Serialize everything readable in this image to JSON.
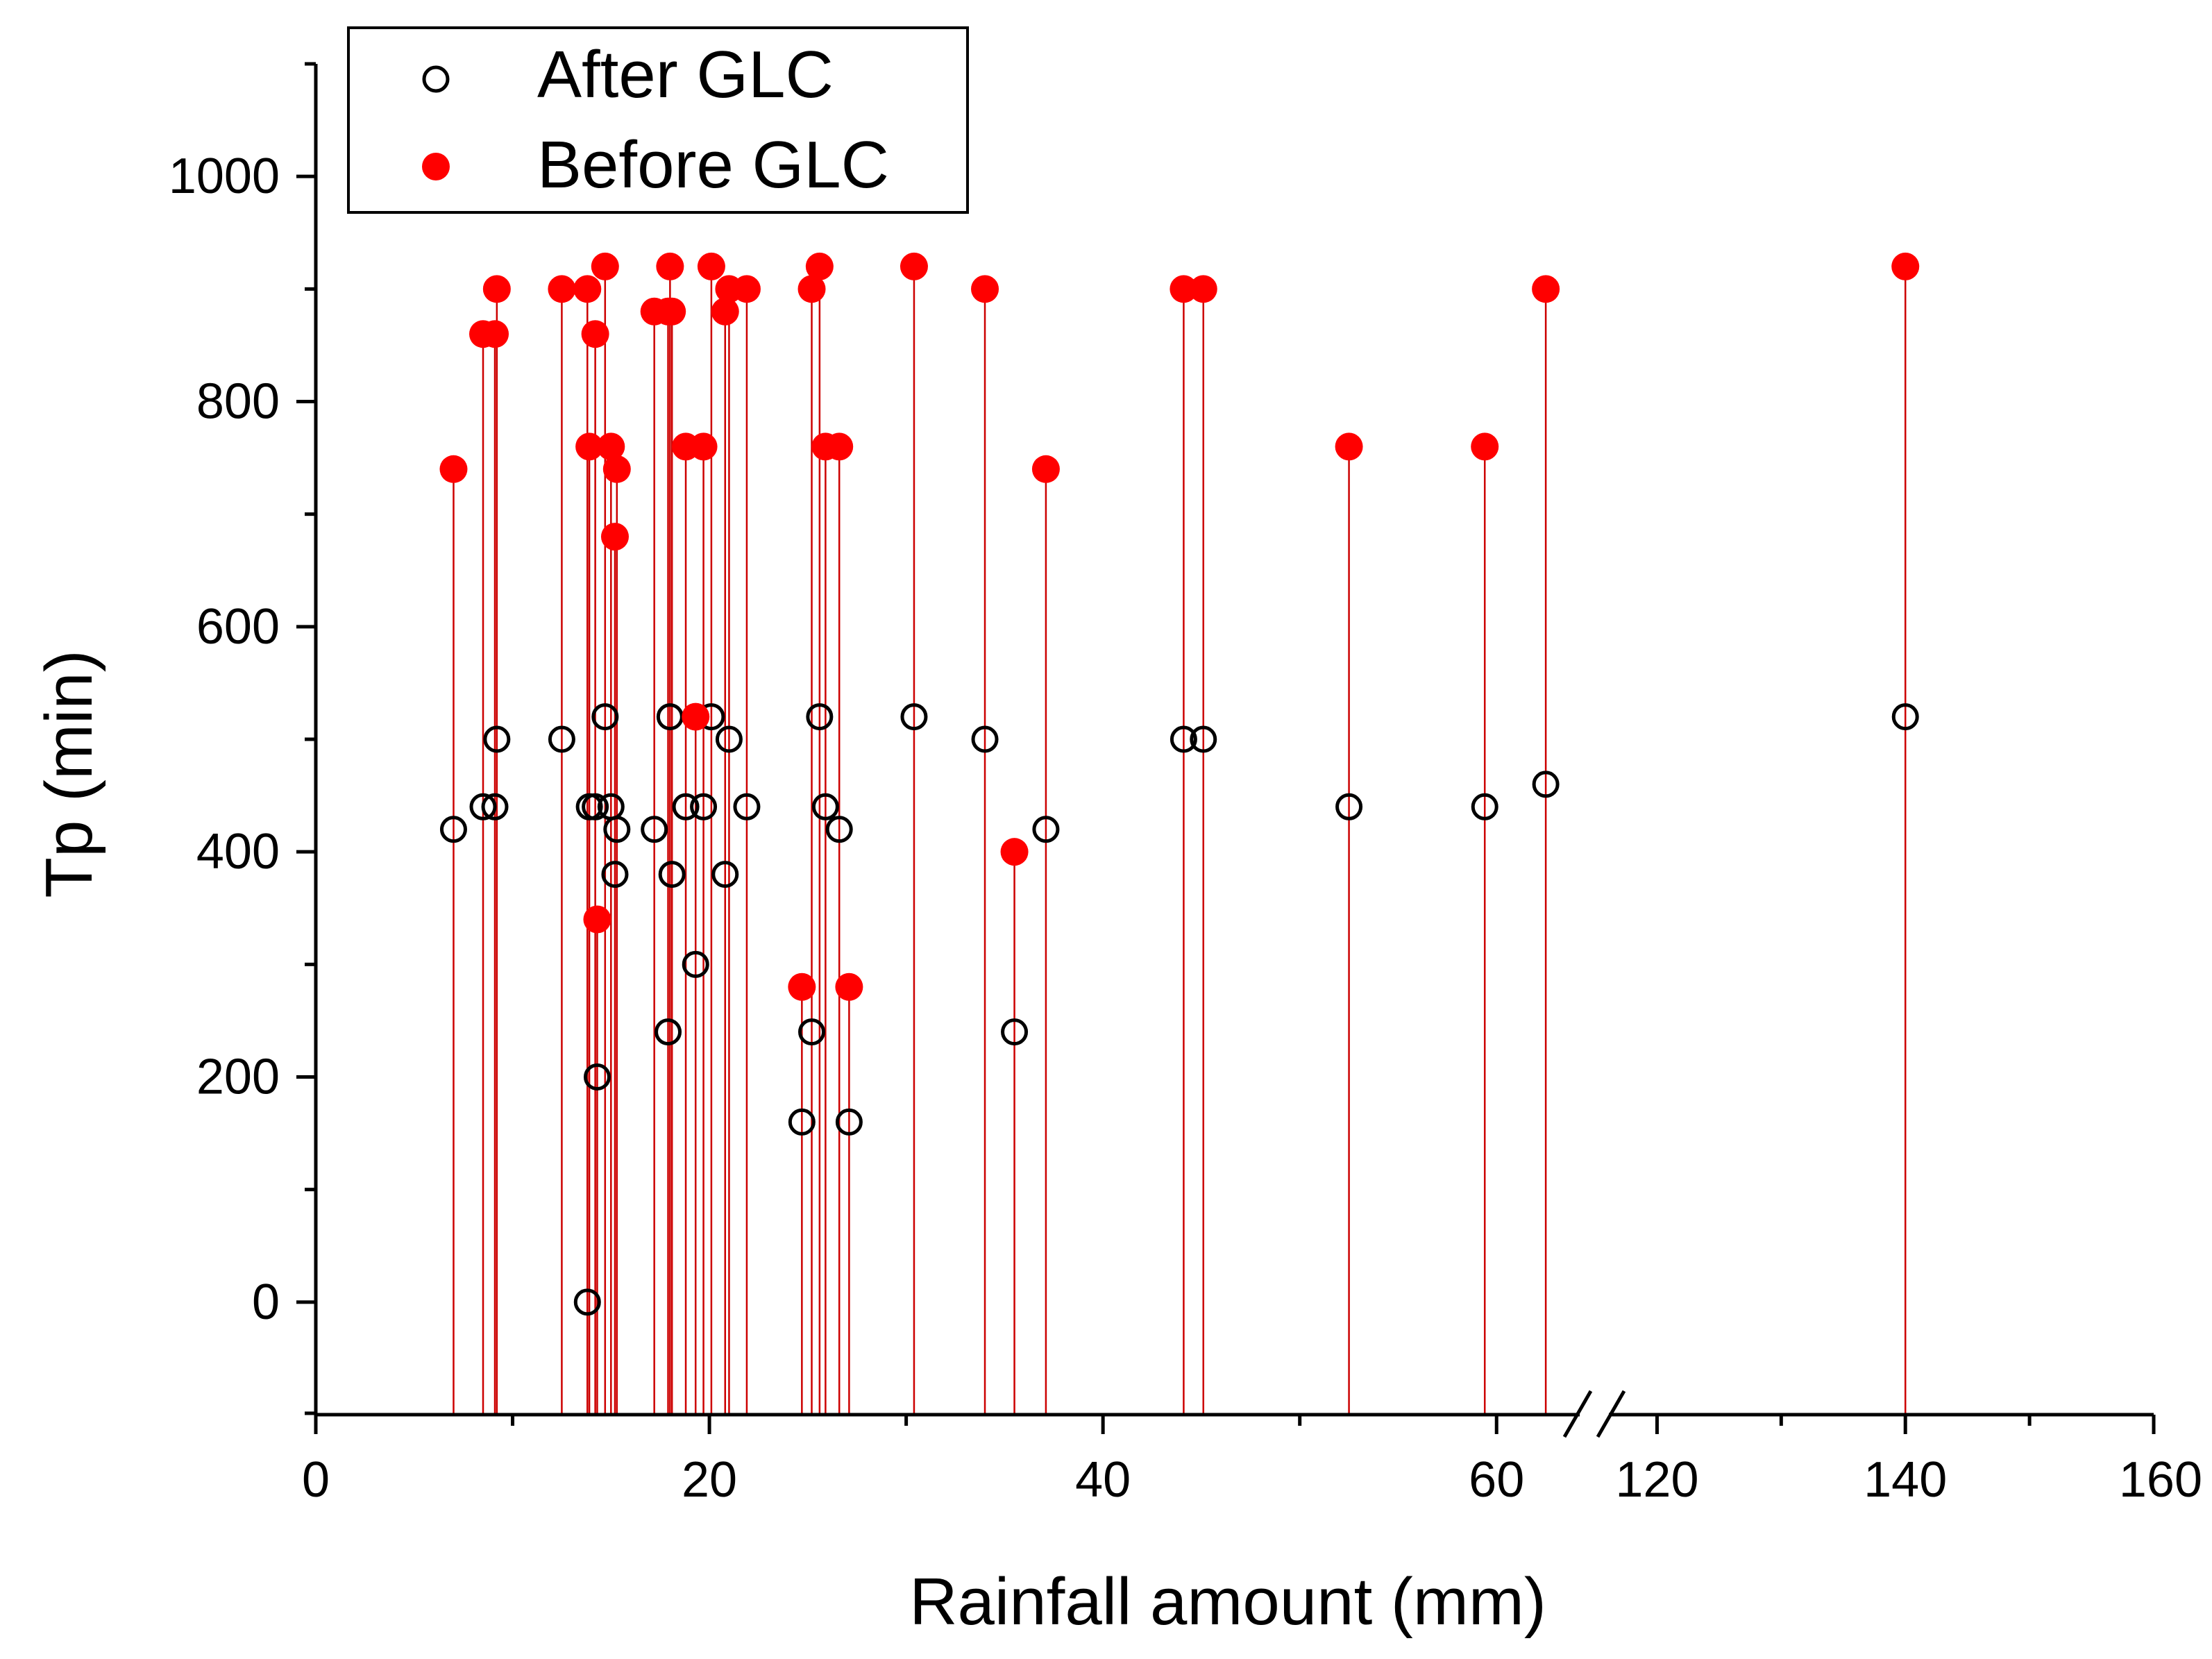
{
  "chart_data": {
    "type": "scatter",
    "title": "",
    "xlabel": "Rainfall amount (mm)",
    "ylabel": "Tp (min)",
    "ylim": [
      -100,
      1100
    ],
    "y_ticks": [
      0,
      200,
      400,
      600,
      800,
      1000
    ],
    "y_tick_labels": [
      "0",
      "200",
      "400",
      "600",
      "800",
      "1000"
    ],
    "x_broken_axis": true,
    "x_segment_1": {
      "range": [
        0,
        65
      ],
      "ticks": [
        0,
        20,
        40,
        60
      ],
      "tick_labels": [
        "0",
        "20",
        "40",
        "60"
      ]
    },
    "x_segment_2": {
      "range": [
        115,
        160
      ],
      "ticks": [
        120,
        140,
        160
      ],
      "tick_labels": [
        "120",
        "140",
        "160"
      ]
    },
    "grid": false,
    "legend": {
      "position": "top-left"
    },
    "drop_lines": true,
    "colors": {
      "after": "#000000",
      "before": "#ff0000",
      "drop_line": "#cc0000"
    },
    "series": [
      {
        "name": "After GLC",
        "marker": "open-circle",
        "x": [
          7.0,
          8.5,
          9.1,
          9.2,
          12.5,
          13.8,
          13.9,
          14.2,
          14.3,
          14.7,
          15.0,
          15.2,
          15.3,
          17.2,
          17.9,
          18.0,
          18.1,
          18.8,
          19.3,
          19.7,
          20.1,
          20.8,
          21.0,
          21.9,
          24.7,
          25.2,
          25.6,
          25.9,
          26.6,
          27.1,
          30.4,
          34.0,
          35.5,
          37.1,
          44.1,
          45.1,
          52.5,
          59.4,
          62.5,
          140.0
        ],
        "y": [
          420,
          440,
          440,
          500,
          500,
          0,
          440,
          440,
          200,
          520,
          440,
          380,
          420,
          420,
          240,
          520,
          380,
          440,
          300,
          440,
          520,
          380,
          500,
          440,
          160,
          240,
          520,
          440,
          420,
          160,
          520,
          500,
          240,
          420,
          500,
          500,
          440,
          440,
          460,
          520
        ]
      },
      {
        "name": "Before GLC",
        "marker": "filled-circle",
        "x": [
          7.0,
          8.5,
          9.1,
          9.2,
          12.5,
          13.8,
          13.9,
          14.2,
          14.3,
          14.7,
          15.0,
          15.2,
          15.3,
          17.2,
          17.9,
          18.0,
          18.1,
          18.8,
          19.3,
          19.7,
          20.1,
          20.8,
          21.0,
          21.9,
          24.7,
          25.2,
          25.6,
          25.9,
          26.6,
          27.1,
          30.4,
          34.0,
          35.5,
          37.1,
          44.1,
          45.1,
          52.5,
          59.4,
          62.5,
          140.0
        ],
        "y": [
          740,
          860,
          860,
          900,
          900,
          900,
          760,
          860,
          340,
          920,
          760,
          680,
          740,
          880,
          880,
          920,
          880,
          760,
          520,
          760,
          920,
          880,
          900,
          900,
          280,
          900,
          920,
          760,
          760,
          280,
          920,
          900,
          400,
          740,
          900,
          900,
          760,
          760,
          900,
          920
        ]
      }
    ]
  }
}
